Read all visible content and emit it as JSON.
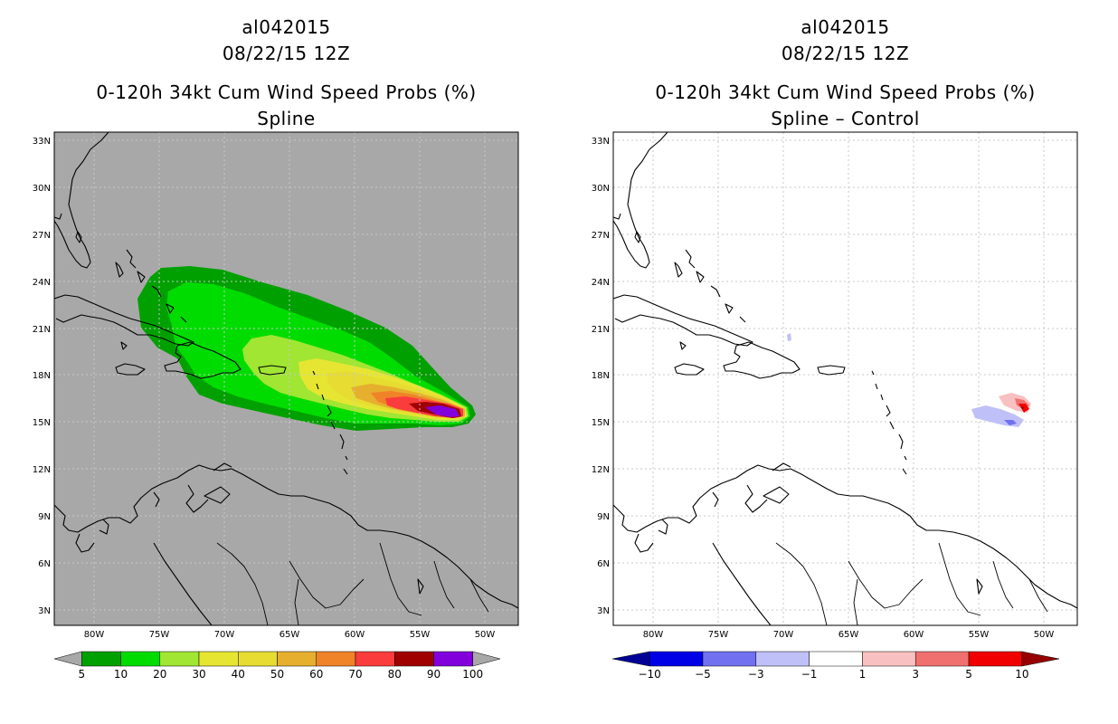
{
  "panels": [
    {
      "id": "left",
      "storm_id": "al042015",
      "datetime": "08/22/15 12Z",
      "product": "0-120h 34kt Cum Wind Speed Probs (%)",
      "subtitle": "Spline",
      "colorbar": {
        "colors": [
          "#00a000",
          "#00dc00",
          "#a0e632",
          "#e6e632",
          "#e6dc32",
          "#e6af2d",
          "#f08228",
          "#fa3c3c",
          "#a00000",
          "#8200dc"
        ],
        "labels": [
          "5",
          "10",
          "20",
          "30",
          "40",
          "50",
          "60",
          "70",
          "80",
          "90",
          "100"
        ],
        "end_arrow_color": "#a8a8a8"
      }
    },
    {
      "id": "right",
      "storm_id": "al042015",
      "datetime": "08/22/15 12Z",
      "product": "0-120h 34kt Cum Wind Speed Probs (%)",
      "subtitle": "Spline – Control",
      "colorbar": {
        "colors": [
          "#0000e6",
          "#7070f0",
          "#c0c0f8",
          "#ffffff",
          "#f8c0c0",
          "#f07070",
          "#f00000"
        ],
        "labels": [
          "−10",
          "−5",
          "−3",
          "−1",
          "1",
          "3",
          "5",
          "10"
        ],
        "left_arrow_color": "#000096",
        "right_arrow_color": "#960000"
      }
    }
  ],
  "map": {
    "lat_labels": [
      "33N",
      "30N",
      "27N",
      "24N",
      "21N",
      "18N",
      "15N",
      "12N",
      "9N",
      "6N",
      "3N"
    ],
    "lon_labels": [
      "80W",
      "75W",
      "70W",
      "65W",
      "60W",
      "55W",
      "50W"
    ],
    "background_left": "#a8a8a8",
    "background_right": "#ffffff"
  }
}
